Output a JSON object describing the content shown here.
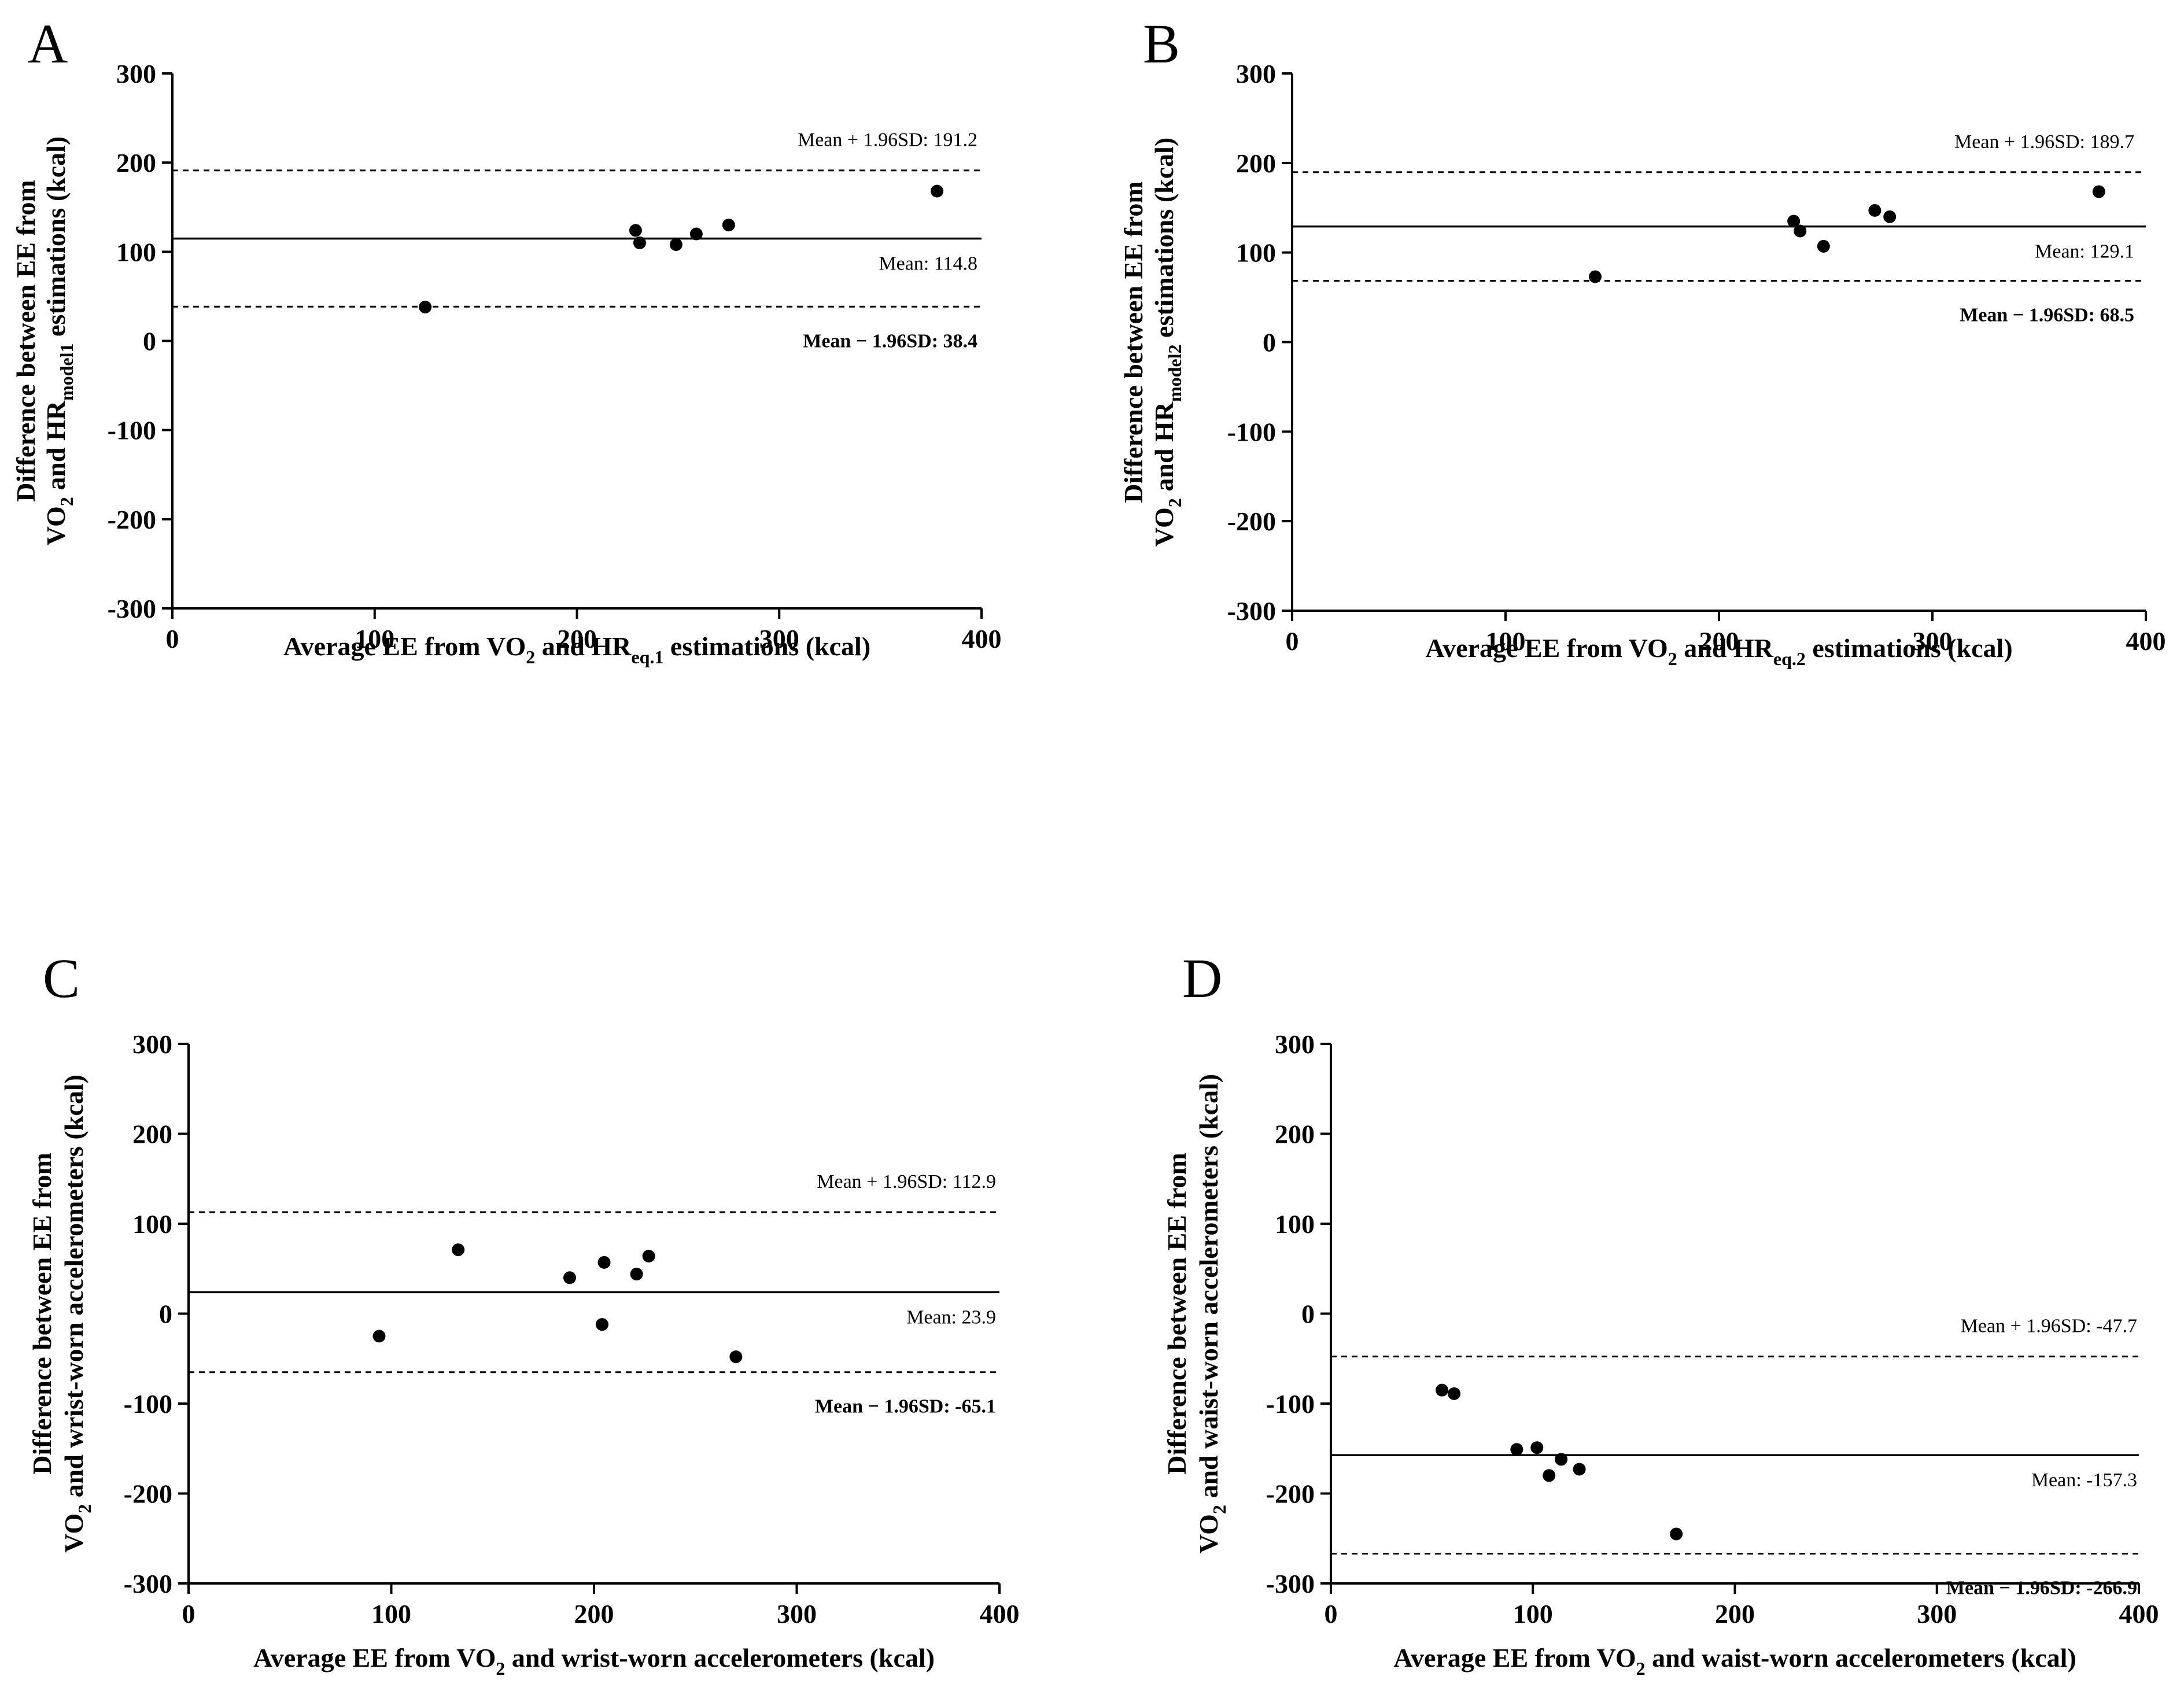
{
  "figure": {
    "panels": [
      {
        "letter": "A",
        "xlabel": {
          "pre": "Average EE from VO",
          "sub1": "2",
          "mid": " and HR",
          "sub2": "eq.1",
          "post": " estimations (kcal)"
        },
        "ylabel": {
          "line1": "Difference between EE from",
          "line2": {
            "pre": "VO",
            "sub1": "2",
            "mid": " and HR",
            "sub2": "model1",
            "post": " estimations (kcal)"
          }
        },
        "upper_label": "Mean + 1.96SD: 191.2",
        "mean_label": "Mean: 114.8",
        "lower_label": "Mean − 1.96SD: 38.4"
      },
      {
        "letter": "B",
        "xlabel": {
          "pre": "Average EE from VO",
          "sub1": "2",
          "mid": " and HR",
          "sub2": "eq.2",
          "post": " estimations (kcal)"
        },
        "ylabel": {
          "line1": "Difference between EE from",
          "line2": {
            "pre": "VO",
            "sub1": "2",
            "mid": " and HR",
            "sub2": "model2",
            "post": " estimations (kcal)"
          }
        },
        "upper_label": "Mean + 1.96SD: 189.7",
        "mean_label": "Mean: 129.1",
        "lower_label": "Mean − 1.96SD: 68.5"
      },
      {
        "letter": "C",
        "xlabel": {
          "pre": "Average EE from VO",
          "sub1": "2",
          "mid": " and wrist-worn accelerometers (kcal)",
          "sub2": "",
          "post": ""
        },
        "ylabel": {
          "line1": "Difference between EE from",
          "line2": {
            "pre": "VO",
            "sub1": "2",
            "mid": " and wrist-worn accelerometers (kcal)",
            "sub2": "",
            "post": ""
          }
        },
        "upper_label": "Mean + 1.96SD: 112.9",
        "mean_label": "Mean: 23.9",
        "lower_label": "Mean − 1.96SD: -65.1"
      },
      {
        "letter": "D",
        "xlabel": {
          "pre": "Average EE from VO",
          "sub1": "2",
          "mid": " and waist-worn accelerometers (kcal)",
          "sub2": "",
          "post": ""
        },
        "ylabel": {
          "line1": "Difference between EE from",
          "line2": {
            "pre": "VO",
            "sub1": "2",
            "mid": " and waist-worn accelerometers (kcal)",
            "sub2": "",
            "post": ""
          }
        },
        "upper_label": "Mean + 1.96SD: -47.7",
        "mean_label": "Mean: -157.3",
        "lower_label": "Mean − 1.96SD: -266.9"
      }
    ]
  },
  "chart_data": [
    {
      "type": "scatter",
      "panel": "A",
      "xlim": [
        0,
        400
      ],
      "ylim": [
        -300,
        300
      ],
      "xticks": [
        0,
        100,
        200,
        300,
        400
      ],
      "yticks": [
        300,
        200,
        100,
        0,
        -100,
        -200,
        -300
      ],
      "mean": 114.8,
      "upper_loa": 191.2,
      "lower_loa": 38.4,
      "points": [
        [
          125,
          38
        ],
        [
          229,
          124
        ],
        [
          231,
          110
        ],
        [
          249,
          108
        ],
        [
          259,
          120
        ],
        [
          275,
          130
        ],
        [
          378,
          168
        ]
      ]
    },
    {
      "type": "scatter",
      "panel": "B",
      "xlim": [
        0,
        400
      ],
      "ylim": [
        -300,
        300
      ],
      "xticks": [
        0,
        100,
        200,
        300,
        400
      ],
      "yticks": [
        300,
        200,
        100,
        0,
        -100,
        -200,
        -300
      ],
      "mean": 129.1,
      "upper_loa": 189.7,
      "lower_loa": 68.5,
      "points": [
        [
          142,
          73
        ],
        [
          235,
          135
        ],
        [
          238,
          124
        ],
        [
          249,
          107
        ],
        [
          273,
          147
        ],
        [
          280,
          140
        ],
        [
          378,
          168
        ]
      ]
    },
    {
      "type": "scatter",
      "panel": "C",
      "xlim": [
        0,
        400
      ],
      "ylim": [
        -300,
        300
      ],
      "xticks": [
        0,
        100,
        200,
        300,
        400
      ],
      "yticks": [
        300,
        200,
        100,
        0,
        -100,
        -200,
        -300
      ],
      "mean": 23.9,
      "upper_loa": 112.9,
      "lower_loa": -65.1,
      "points": [
        [
          94,
          -25
        ],
        [
          133,
          71
        ],
        [
          188,
          40
        ],
        [
          204,
          -12
        ],
        [
          205,
          57
        ],
        [
          221,
          44
        ],
        [
          227,
          64
        ],
        [
          270,
          -48
        ]
      ]
    },
    {
      "type": "scatter",
      "panel": "D",
      "xlim": [
        0,
        400
      ],
      "ylim": [
        -300,
        300
      ],
      "xticks": [
        0,
        100,
        200,
        300,
        400
      ],
      "yticks": [
        300,
        200,
        100,
        0,
        -100,
        -200,
        -300
      ],
      "mean": -157.3,
      "upper_loa": -47.7,
      "lower_loa": -266.9,
      "points": [
        [
          55,
          -85
        ],
        [
          61,
          -89
        ],
        [
          92,
          -151
        ],
        [
          102,
          -149
        ],
        [
          108,
          -180
        ],
        [
          114,
          -162
        ],
        [
          123,
          -173
        ],
        [
          171,
          -245
        ]
      ]
    }
  ]
}
